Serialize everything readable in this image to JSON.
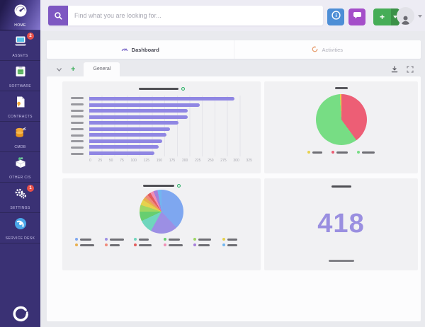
{
  "sidebar": {
    "items": [
      {
        "label": "HOME",
        "badge": "",
        "active": true
      },
      {
        "label": "ASSETS",
        "badge": "2",
        "active": false
      },
      {
        "label": "SOFTWARE",
        "badge": "",
        "active": false
      },
      {
        "label": "CONTRACTS",
        "badge": "",
        "active": false
      },
      {
        "label": "CMDB",
        "badge": "",
        "active": false
      },
      {
        "label": "OTHER CIs",
        "badge": "",
        "active": false
      },
      {
        "label": "SETTINGS",
        "badge": "1",
        "active": false
      },
      {
        "label": "SERVICE DESK",
        "badge": "",
        "active": false
      }
    ]
  },
  "header": {
    "search_placeholder": "Find what you are looking for...",
    "add_button_label": "+"
  },
  "tabs": {
    "dashboard": "Dashboard",
    "activities": "Activities"
  },
  "toolbar": {
    "add_label": "+",
    "active_tab": "General"
  },
  "colors": {
    "sidebar_bg": "#3a3174",
    "accent_purple": "#7e57c2",
    "bar_purple": "#8f86e3",
    "number_purple": "#9a8fe0",
    "badge_red": "#e8504a",
    "button_blue": "#4d8ed6",
    "button_purple": "#a44ec9",
    "button_green": "#46ad57"
  },
  "chart_data": [
    {
      "type": "bar",
      "orientation": "horizontal",
      "title": "",
      "title_redacted": true,
      "categories_redacted": true,
      "values": [
        290,
        221,
        197,
        196,
        178,
        161,
        154,
        145,
        138,
        130
      ],
      "x_ticks": [
        "0",
        "25",
        "50",
        "75",
        "100",
        "125",
        "150",
        "175",
        "200",
        "225",
        "250",
        "275",
        "300",
        "325"
      ],
      "xlim": [
        0,
        325
      ],
      "bar_color": "#8f86e3",
      "grid": true
    },
    {
      "type": "pie",
      "title": "",
      "title_redacted": true,
      "slices": [
        {
          "color": "#ed5e75",
          "pct": 40
        },
        {
          "color": "#77dd84",
          "pct": 59
        },
        {
          "color": "#e6d24e",
          "pct": 1
        }
      ],
      "legend": [
        {
          "color": "#e6d24e",
          "strip_w": 14
        },
        {
          "color": "#ed5e75",
          "strip_w": 16
        },
        {
          "color": "#77dd84",
          "strip_w": 18
        }
      ],
      "legend_position": "bottom"
    },
    {
      "type": "pie",
      "title": "",
      "title_redacted": true,
      "slices": [
        {
          "color": "#7ea7f0",
          "pct": 38
        },
        {
          "color": "#9c8fe4",
          "pct": 20
        },
        {
          "color": "#6fd6bd",
          "pct": 10
        },
        {
          "color": "#67ce70",
          "pct": 7
        },
        {
          "color": "#9ed763",
          "pct": 5
        },
        {
          "color": "#e6d24e",
          "pct": 4
        },
        {
          "color": "#e8b04e",
          "pct": 2.5
        },
        {
          "color": "#ef8a7a",
          "pct": 2.5
        },
        {
          "color": "#e25c5c",
          "pct": 2.5
        },
        {
          "color": "#f08fb5",
          "pct": 2.5
        },
        {
          "color": "#a77fd9",
          "pct": 3
        },
        {
          "color": "#72b6ef",
          "pct": 3
        }
      ],
      "legend": [
        {
          "color": "#7ea7f0",
          "strip_w": 16
        },
        {
          "color": "#9c8fe4",
          "strip_w": 20
        },
        {
          "color": "#6fd6bd",
          "strip_w": 14
        },
        {
          "color": "#67ce70",
          "strip_w": 16
        },
        {
          "color": "#9ed763",
          "strip_w": 18
        },
        {
          "color": "#e6d24e",
          "strip_w": 14
        },
        {
          "color": "#e8b04e",
          "strip_w": 20
        },
        {
          "color": "#ef8a7a",
          "strip_w": 14
        },
        {
          "color": "#e25c5c",
          "strip_w": 18
        },
        {
          "color": "#f08fb5",
          "strip_w": 20
        },
        {
          "color": "#a77fd9",
          "strip_w": 16
        },
        {
          "color": "#72b6ef",
          "strip_w": 14
        }
      ],
      "legend_position": "bottom"
    },
    {
      "type": "number",
      "value": "418",
      "title_redacted": true,
      "label_redacted": true
    }
  ]
}
